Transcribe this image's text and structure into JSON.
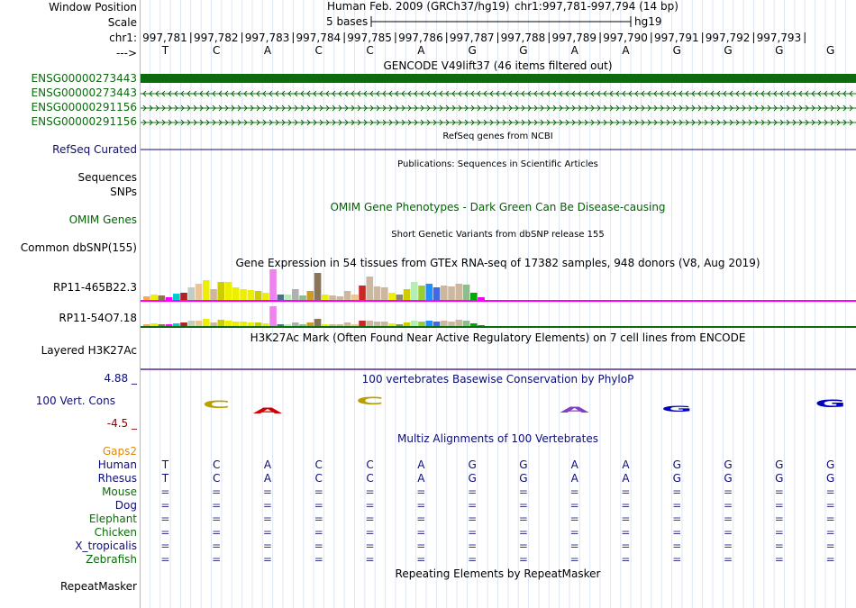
{
  "header": {
    "window_position_label": "Window Position",
    "scale_label": "Scale",
    "chrom_label": "chr1:",
    "arrow_label": "--->",
    "assembly_text": "Human Feb. 2009 (GRCh37/hg19)",
    "position_text": "chr1:997,781-997,794 (14 bp)",
    "scale_text": "5 bases",
    "db_text": "hg19"
  },
  "ruler": {
    "positions": [
      "997,781",
      "997,782",
      "997,783",
      "997,784",
      "997,785",
      "997,786",
      "997,787",
      "997,788",
      "997,789",
      "997,790",
      "997,791",
      "997,792",
      "997,793"
    ],
    "bases": [
      "T",
      "C",
      "A",
      "C",
      "C",
      "A",
      "G",
      "G",
      "A",
      "A",
      "G",
      "G",
      "G",
      "G"
    ]
  },
  "tracks": {
    "gencode_title": "GENCODE V49lift37 (46 items filtered out)",
    "gencode_items": [
      "ENSG00000273443",
      "ENSG00000273443",
      "ENSG00000291156",
      "ENSG00000291156"
    ],
    "refseq_title": "RefSeq genes from NCBI",
    "refseq_label": "RefSeq Curated",
    "pubs_title": "Publications: Sequences in Scientific Articles",
    "sequences_label": "Sequences",
    "snps_label": "SNPs",
    "omim_title": "OMIM Gene Phenotypes - Dark Green Can Be Disease-causing",
    "omim_label": "OMIM Genes",
    "dbsnp_title": "Short Genetic Variants from dbSNP release 155",
    "dbsnp_label": "Common dbSNP(155)",
    "gtex_title": "Gene Expression in 54 tissues from GTEx RNA-seq of 17382 samples, 948 donors (V8, Aug 2019)",
    "gtex_labels": [
      "RP11-465B22.3",
      "RP11-54O7.18"
    ],
    "h3k27_title": "H3K27Ac Mark (Often Found Near Active Regulatory Elements) on 7 cell lines from ENCODE",
    "h3k27_label": "Layered H3K27Ac",
    "phylop_title": "100 vertebrates Basewise Conservation by PhyloP",
    "phylop_label": "100 Vert. Cons",
    "phylop_max": "4.88 _",
    "phylop_min": "-4.5 _",
    "multiz_title": "Multiz Alignments of 100 Vertebrates",
    "gaps_label": "Gaps2",
    "species": [
      "Human",
      "Rhesus",
      "Mouse",
      "Dog",
      "Elephant",
      "Chicken",
      "X_tropicalis",
      "Zebrafish"
    ],
    "human_seq": [
      "T",
      "C",
      "A",
      "C",
      "C",
      "A",
      "G",
      "G",
      "A",
      "A",
      "G",
      "G",
      "G",
      "G"
    ],
    "rhesus_seq": [
      "T",
      "C",
      "A",
      "C",
      "C",
      "A",
      "G",
      "G",
      "A",
      "A",
      "G",
      "G",
      "G",
      "G"
    ],
    "gap_symbol": "=",
    "rmsk_title": "Repeating Elements by RepeatMasker",
    "rmsk_label": "RepeatMasker"
  },
  "gtex_bars_1": [
    4,
    6,
    5,
    3,
    7,
    8,
    14,
    18,
    22,
    12,
    20,
    20,
    14,
    12,
    11,
    10,
    8,
    34,
    6,
    6,
    12,
    5,
    10,
    30,
    6,
    5,
    4,
    10,
    6,
    16,
    26,
    15,
    14,
    8,
    6,
    12,
    20,
    16,
    18,
    14,
    16,
    15,
    18,
    17,
    8,
    3
  ],
  "gtex_bars_2": [
    2,
    3,
    2,
    2,
    3,
    4,
    6,
    6,
    8,
    4,
    7,
    6,
    5,
    5,
    4,
    4,
    3,
    22,
    2,
    2,
    4,
    2,
    4,
    8,
    2,
    2,
    2,
    4,
    2,
    6,
    6,
    5,
    5,
    3,
    2,
    4,
    6,
    5,
    6,
    5,
    6,
    5,
    7,
    6,
    3,
    1
  ],
  "gtex_colors": [
    "#ffa54f",
    "#eeee00",
    "#8b7355",
    "#ff00ff",
    "#00cdcd",
    "#b22222",
    "#c1cdc1",
    "#eec591",
    "#eeee00",
    "#cdb79e",
    "#cdcd00",
    "#eeee00",
    "#eeee00",
    "#eeee00",
    "#eeee00",
    "#cdcd00",
    "#eeee00",
    "#ee82ee",
    "#4a708b",
    "#b4eeb4",
    "#b0b0b0",
    "#8fbc8f",
    "#cd9b1d",
    "#8b7355",
    "#eeee00",
    "#cdb79e",
    "#cdb79e",
    "#cdb79e",
    "#eec591",
    "#cd2626",
    "#cdb79e",
    "#cdb79e",
    "#cdb79e",
    "#eeee00",
    "#8b8970",
    "#cdcd00",
    "#b4eeb4",
    "#9acd32",
    "#1e90ff",
    "#4169e1",
    "#cdb79e",
    "#cdb79e",
    "#cdb79e",
    "#8fbc8f",
    "#00aa00",
    "#ee00ee"
  ],
  "colors": {
    "gencode": "#0c6b0c",
    "refseq": "#0c0c78",
    "omim_text": "#006400",
    "gtex_line": "#ff00ff",
    "h3k27": "#7b5cae",
    "multiz_text": "#0c0c78",
    "phylop_max": "#0c0c78",
    "phylop_min": "#8b0000",
    "gaps": "#e0890c"
  }
}
